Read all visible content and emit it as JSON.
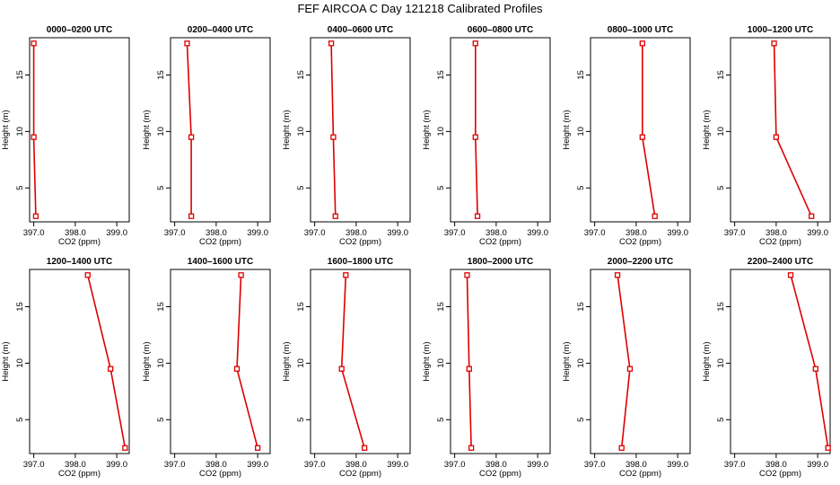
{
  "title": "FEF AIRCOA C  Day 121218  Calibrated Profiles",
  "chart_data": {
    "type": "line",
    "title": "FEF AIRCOA C  Day 121218  Calibrated Profiles",
    "xlabel": "CO2 (ppm)",
    "ylabel": "Height (m)",
    "xlim": [
      396.9,
      399.3
    ],
    "ylim": [
      2.0,
      18.3
    ],
    "xticks": [
      397,
      398,
      399
    ],
    "xtick_labels": [
      "397.0",
      "398.0",
      "399.0"
    ],
    "yticks": [
      5,
      10,
      15
    ],
    "ytick_labels": [
      "5",
      "10",
      "15"
    ],
    "grid": false,
    "line_color": "#dd0000",
    "marker": "open-square",
    "heights": [
      17.8,
      9.5,
      2.5
    ],
    "panels": [
      {
        "title": "0000–0200 UTC",
        "x": [
          397.0,
          397.0,
          397.05
        ]
      },
      {
        "title": "0200–0400 UTC",
        "x": [
          397.3,
          397.4,
          397.4
        ]
      },
      {
        "title": "0400–0600 UTC",
        "x": [
          397.4,
          397.45,
          397.5
        ]
      },
      {
        "title": "0600–0800 UTC",
        "x": [
          397.5,
          397.5,
          397.55
        ]
      },
      {
        "title": "0800–1000 UTC",
        "x": [
          398.15,
          398.15,
          398.45
        ]
      },
      {
        "title": "1000–1200 UTC",
        "x": [
          397.95,
          398.0,
          398.85
        ]
      },
      {
        "title": "1200–1400 UTC",
        "x": [
          398.3,
          398.85,
          399.2
        ]
      },
      {
        "title": "1400–1600 UTC",
        "x": [
          398.6,
          398.5,
          399.0
        ]
      },
      {
        "title": "1600–1800 UTC",
        "x": [
          397.75,
          397.65,
          398.2
        ]
      },
      {
        "title": "1800–2000 UTC",
        "x": [
          397.3,
          397.35,
          397.4
        ]
      },
      {
        "title": "2000–2200 UTC",
        "x": [
          397.55,
          397.85,
          397.65
        ]
      },
      {
        "title": "2200–2400 UTC",
        "x": [
          398.35,
          398.95,
          399.25
        ]
      }
    ]
  }
}
